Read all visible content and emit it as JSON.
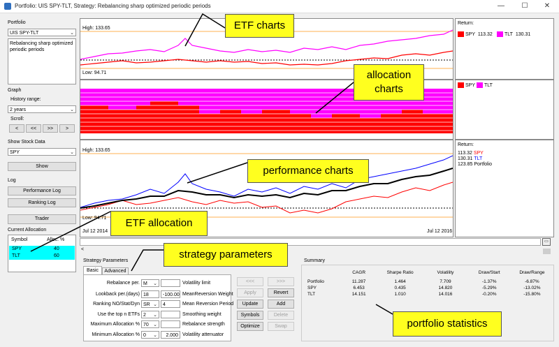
{
  "window": {
    "title": "Portfolio: UIS SPY-TLT, Strategy: Rebalancing sharp optimized periodic periods",
    "controls": [
      "—",
      "☐",
      "✕"
    ]
  },
  "portfolio": {
    "group_label": "Portfolio",
    "selected": "UIS SPY-TLT",
    "description": "Rebalancing sharp optimized periodic periods"
  },
  "graph": {
    "group_label": "Graph",
    "history_label": "History range:",
    "history_value": "2 years",
    "scroll_label": "Scroll:",
    "scroll_buttons": [
      "<",
      "<<",
      ">>",
      ">"
    ]
  },
  "stock_data": {
    "group_label": "Show Stock Data",
    "selected": "SPY",
    "show_label": "Show"
  },
  "log": {
    "group_label": "Log",
    "performance_label": "Performance Log",
    "ranking_label": "Ranking Log"
  },
  "trader_label": "Trader",
  "allocation": {
    "group_label": "Current Allocation",
    "col_symbol": "Symbol",
    "col_alloc": "Alloc. %",
    "rows": [
      {
        "symbol": "SPY",
        "alloc": "40"
      },
      {
        "symbol": "TLT",
        "alloc": "60"
      }
    ]
  },
  "etf_chart": {
    "high_label": "High: 133.65",
    "low_label": "Low: 94.71",
    "legend_title": "Return:",
    "legend": [
      {
        "name": "SPY",
        "value": "113.32",
        "color": "#ff0000"
      },
      {
        "name": "TLT",
        "value": "130.31",
        "color": "#ff00ff"
      }
    ]
  },
  "alloc_chart": {
    "legend": [
      {
        "name": "SPY",
        "color": "#ff0000"
      },
      {
        "name": "TLT",
        "color": "#ff00ff"
      }
    ]
  },
  "perf_chart": {
    "high_label": "High: 133.65",
    "low_label": "Low: 94.71",
    "date_start": "Jul 12 2014",
    "date_end": "Jul 12 2016",
    "legend_title": "Return:",
    "legend": [
      {
        "value": "113.32",
        "name": "SPY",
        "color": "#ff0000"
      },
      {
        "value": "130.31",
        "name": "TLT",
        "color": "#0000ff"
      },
      {
        "value": "123.85",
        "name": "Portfolio",
        "color": "#000000"
      }
    ]
  },
  "scrollbar": {
    "left": "<",
    "right": ">"
  },
  "strategy": {
    "group_label": "Strategy Parameters",
    "tabs": [
      "Basic",
      "Advanced"
    ],
    "params": [
      {
        "label": "Rebalance per.",
        "value": "M",
        "extra": "",
        "desc": "Volatility limit"
      },
      {
        "label": "Lookback per.(days)",
        "value": "18",
        "extra": "-100.00",
        "desc": "MeanReversion Weight"
      },
      {
        "label": "Ranking NO/Stat/Dyn",
        "value": "SR",
        "extra": "4",
        "desc": "Mean Reversion Period"
      },
      {
        "label": "Use the top n ETFs",
        "value": "2",
        "extra": "",
        "desc": "Smoothing  weight"
      },
      {
        "label": "Maximum Allocation %",
        "value": "70",
        "extra": "",
        "desc": "Rebalance strength"
      },
      {
        "label": "Minimum Allocation %",
        "value": "0",
        "extra": "2.000",
        "desc": "Volatility attenuator"
      }
    ],
    "buttons_left": [
      {
        "label": "<<<",
        "enabled": false
      },
      {
        "label": "Apply",
        "enabled": false
      },
      {
        "label": "Update",
        "enabled": true
      },
      {
        "label": "Symbols",
        "enabled": true
      },
      {
        "label": "Optimize",
        "enabled": true
      }
    ],
    "buttons_right": [
      {
        "label": ">>>",
        "enabled": false
      },
      {
        "label": "Revert",
        "enabled": true
      },
      {
        "label": "Add",
        "enabled": true
      },
      {
        "label": "Delete",
        "enabled": false
      },
      {
        "label": "Swap",
        "enabled": false
      }
    ]
  },
  "summary": {
    "group_label": "Summary",
    "headers": [
      "",
      "CAGR",
      "Sharpe Ratio",
      "Volatility",
      "Draw/Start",
      "Draw/Range"
    ],
    "rows": [
      [
        "Portfolio",
        "11.287",
        "1.464",
        "7.709",
        "-1.37%",
        "-6.87%"
      ],
      [
        "SPY",
        "6.453",
        "0.435",
        "14.820",
        "-5.29%",
        "-13.02%"
      ],
      [
        "TLT",
        "14.151",
        "1.010",
        "14.016",
        "-0.20%",
        "-15.80%"
      ]
    ]
  },
  "callouts": {
    "etf_charts": "ETF charts",
    "allocation_charts": "allocation\ncharts",
    "performance_charts": "performance charts",
    "etf_allocation": "ETF allocation",
    "strategy_parameters": "strategy parameters",
    "portfolio_statistics": "portfolio statistics"
  }
}
